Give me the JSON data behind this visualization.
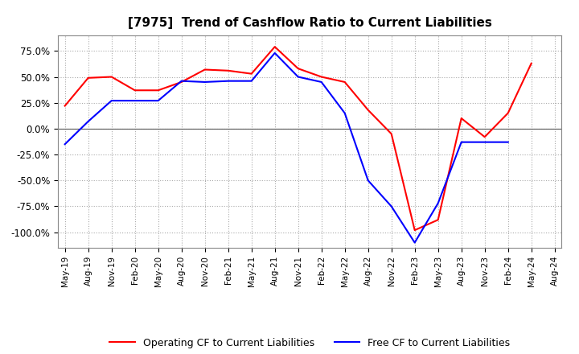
{
  "title": "[7975]  Trend of Cashflow Ratio to Current Liabilities",
  "title_fontsize": 11,
  "x_labels": [
    "May-19",
    "Aug-19",
    "Nov-19",
    "Feb-20",
    "May-20",
    "Aug-20",
    "Nov-20",
    "Feb-21",
    "May-21",
    "Aug-21",
    "Nov-21",
    "Feb-22",
    "May-22",
    "Aug-22",
    "Nov-22",
    "Feb-23",
    "May-23",
    "Aug-23",
    "Nov-23",
    "Feb-24",
    "May-24",
    "Aug-24"
  ],
  "operating_cf": [
    0.22,
    0.49,
    0.5,
    0.37,
    0.37,
    0.45,
    0.57,
    0.56,
    0.53,
    0.79,
    0.58,
    0.5,
    0.45,
    0.18,
    -0.05,
    -0.98,
    -0.88,
    0.1,
    -0.08,
    0.15,
    0.63,
    null
  ],
  "free_cf": [
    -0.15,
    0.07,
    0.27,
    0.27,
    0.27,
    0.46,
    0.45,
    0.46,
    0.46,
    0.73,
    0.5,
    0.45,
    0.15,
    -0.5,
    -0.75,
    -1.1,
    -0.72,
    -0.13,
    -0.13,
    -0.13,
    null,
    null
  ],
  "ylim": [
    -1.15,
    0.9
  ],
  "yticks": [
    0.75,
    0.5,
    0.25,
    0.0,
    -0.25,
    -0.5,
    -0.75,
    -1.0
  ],
  "ytick_labels": [
    "75.0%",
    "50.0%",
    "25.0%",
    "0.0%",
    "-25.0%",
    "-50.0%",
    "-75.0%",
    "-100.0%"
  ],
  "operating_color": "#ff0000",
  "free_color": "#0000ff",
  "grid_color": "#aaaaaa",
  "zero_line_color": "#555555",
  "background_color": "#ffffff",
  "legend_op": "Operating CF to Current Liabilities",
  "legend_free": "Free CF to Current Liabilities"
}
